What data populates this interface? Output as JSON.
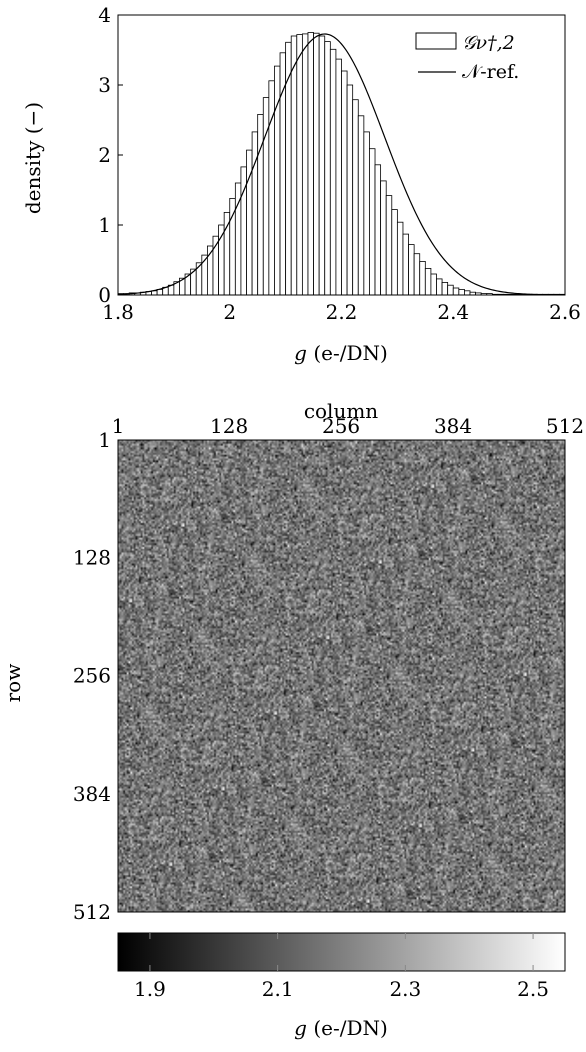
{
  "chart_data": [
    {
      "type": "bar",
      "subtype": "histogram",
      "xlabel_italic": "g",
      "xlabel_rest": " (e-/DN)",
      "ylabel": "density (−)",
      "xlim": [
        1.8,
        2.6
      ],
      "ylim": [
        0,
        4
      ],
      "xticks": [
        "1.8",
        "2",
        "2.2",
        "2.4",
        "2.6"
      ],
      "yticks": [
        "0",
        "1",
        "2",
        "3",
        "4"
      ],
      "grid": false,
      "legend_position": "top-right",
      "legend": [
        {
          "label": "𝒢ν†,2",
          "kind": "bar"
        },
        {
          "label": "𝒩-ref.",
          "kind": "line"
        }
      ],
      "bin_width": 0.01,
      "bin_start": 1.8,
      "histogram": [
        0.02,
        0.02,
        0.03,
        0.03,
        0.04,
        0.05,
        0.06,
        0.08,
        0.11,
        0.14,
        0.19,
        0.24,
        0.3,
        0.37,
        0.46,
        0.57,
        0.7,
        0.84,
        1.0,
        1.18,
        1.38,
        1.6,
        1.83,
        2.07,
        2.33,
        2.58,
        2.82,
        3.06,
        3.27,
        3.46,
        3.61,
        3.7,
        3.72,
        3.73,
        3.75,
        3.74,
        3.7,
        3.62,
        3.51,
        3.37,
        3.2,
        3.0,
        2.79,
        2.56,
        2.33,
        2.09,
        1.86,
        1.63,
        1.42,
        1.22,
        1.04,
        0.87,
        0.72,
        0.59,
        0.48,
        0.38,
        0.3,
        0.23,
        0.18,
        0.14,
        0.1,
        0.08,
        0.06,
        0.04,
        0.03,
        0.02,
        0.02,
        0.01,
        0.01,
        0.01,
        0.01,
        0.01,
        0.01,
        0.01,
        0.01,
        0.01,
        0.01,
        0.01,
        0.01,
        0.01
      ],
      "normal_ref": {
        "mean": 2.17,
        "std": 0.107
      }
    },
    {
      "type": "heatmap",
      "top_label": "column",
      "ylabel": "row",
      "xticks": [
        "1",
        "128",
        "256",
        "384",
        "512"
      ],
      "yticks": [
        "1",
        "128",
        "256",
        "384",
        "512"
      ],
      "xrange": [
        1,
        512
      ],
      "yrange": [
        1,
        512
      ],
      "colormap": "gray",
      "value_range": [
        1.85,
        2.55
      ],
      "distribution": {
        "mean": 2.17,
        "std": 0.107
      }
    },
    {
      "type": "colorbar",
      "ticks": [
        "1.9",
        "2.1",
        "2.3",
        "2.5"
      ],
      "range": [
        1.85,
        2.55
      ],
      "xlabel_italic": "g",
      "xlabel_rest": " (e-/DN)"
    }
  ]
}
